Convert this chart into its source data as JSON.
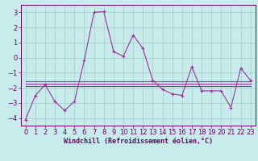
{
  "xlabel": "Windchill (Refroidissement éolien,°C)",
  "bg_color": "#c8ecec",
  "grid_color": "#a0cccc",
  "line_color": "#993399",
  "xlim": [
    -0.5,
    23.5
  ],
  "ylim": [
    -4.5,
    3.5
  ],
  "yticks": [
    -4,
    -3,
    -2,
    -1,
    0,
    1,
    2,
    3
  ],
  "xticks": [
    0,
    1,
    2,
    3,
    4,
    5,
    6,
    7,
    8,
    9,
    10,
    11,
    12,
    13,
    14,
    15,
    16,
    17,
    18,
    19,
    20,
    21,
    22,
    23
  ],
  "series0": [
    -4.1,
    -2.5,
    -1.8,
    -2.9,
    -3.5,
    -2.9,
    -0.2,
    3.0,
    3.05,
    0.4,
    0.1,
    1.5,
    0.6,
    -1.5,
    -2.1,
    -2.4,
    -2.5,
    -0.6,
    -2.2,
    -2.2,
    -2.2,
    -3.3,
    -0.7,
    -1.5
  ],
  "series1": [
    -1.55,
    -1.55,
    -1.55,
    -1.55,
    -1.55,
    -1.55,
    -1.55,
    -1.55,
    -1.55,
    -1.55,
    -1.55,
    -1.55,
    -1.55,
    -1.55,
    -1.55,
    -1.55,
    -1.55,
    -1.55,
    -1.55,
    -1.55,
    -1.55,
    -1.55,
    -1.55,
    -1.55
  ],
  "series2": [
    -1.75,
    -1.75,
    -1.75,
    -1.75,
    -1.75,
    -1.75,
    -1.75,
    -1.75,
    -1.75,
    -1.75,
    -1.75,
    -1.75,
    -1.75,
    -1.75,
    -1.75,
    -1.75,
    -1.75,
    -1.75,
    -1.75,
    -1.75,
    -1.75,
    -1.75,
    -1.75,
    -1.75
  ],
  "series3": [
    -1.9,
    -1.9,
    -1.9,
    -1.9,
    -1.9,
    -1.9,
    -1.9,
    -1.9,
    -1.9,
    -1.9,
    -1.9,
    -1.9,
    -1.9,
    -1.9,
    -1.9,
    -1.9,
    -1.9,
    -1.9,
    -1.9,
    -1.9,
    -1.9,
    -1.9,
    -1.9,
    -1.9
  ],
  "tick_fontsize": 6,
  "xlabel_fontsize": 6,
  "tick_color": "#660066",
  "spine_color": "#660066"
}
